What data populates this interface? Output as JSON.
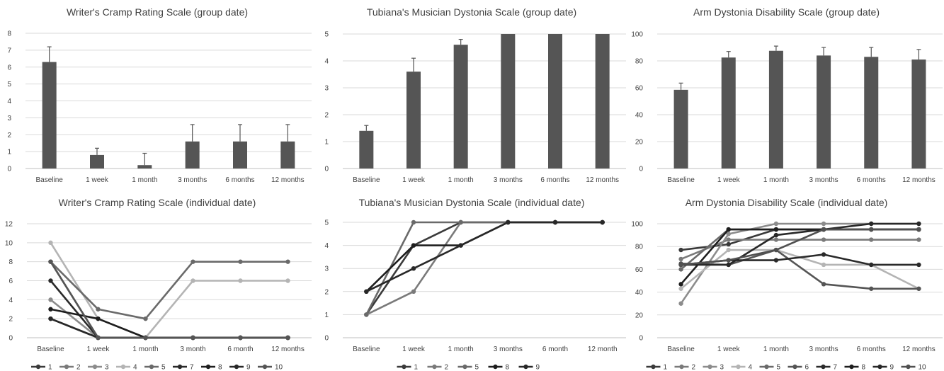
{
  "chart_data": [
    {
      "type": "bar",
      "title": "Writer's Cramp Rating Scale (group date)",
      "categories": [
        "Baseline",
        "1 week",
        "1 month",
        "3 months",
        "6 months",
        "12 months"
      ],
      "values": [
        6.3,
        0.8,
        0.2,
        1.6,
        1.6,
        1.6
      ],
      "error": [
        0.9,
        0.4,
        0.7,
        1.0,
        1.0,
        1.0
      ],
      "ylim": [
        0,
        8
      ],
      "yticks": [
        0,
        1,
        2,
        3,
        4,
        5,
        6,
        7,
        8
      ],
      "grid": true,
      "color": "#555555"
    },
    {
      "type": "bar",
      "title": "Tubiana's Musician Dystonia Scale (group date)",
      "categories": [
        "Baseline",
        "1 week",
        "1 month",
        "3 months",
        "6 months",
        "12 months"
      ],
      "values": [
        1.4,
        3.6,
        4.6,
        5,
        5,
        5
      ],
      "error": [
        0.2,
        0.5,
        0.2,
        0,
        0,
        0
      ],
      "ylim": [
        0,
        5
      ],
      "yticks": [
        0,
        1,
        2,
        3,
        4,
        5
      ],
      "grid": true,
      "color": "#555555"
    },
    {
      "type": "bar",
      "title": "Arm Dystonia Disability Scale (group date)",
      "categories": [
        "Baseline",
        "1 week",
        "1 month",
        "3 months",
        "6 months",
        "12 months"
      ],
      "values": [
        58.5,
        82.5,
        87.5,
        84,
        83,
        81
      ],
      "error": [
        5,
        4.5,
        3.5,
        6,
        7,
        7.5
      ],
      "ylim": [
        0,
        100
      ],
      "yticks": [
        0,
        20,
        40,
        60,
        80,
        100
      ],
      "grid": true,
      "color": "#555555"
    },
    {
      "type": "line",
      "title": "Writer's Cramp Rating Scale  (individual date)",
      "categories": [
        "Baseline",
        "1 week",
        "1 month",
        "3 month",
        "6 month",
        "12 months"
      ],
      "ylim": [
        0,
        12
      ],
      "yticks": [
        0,
        2,
        4,
        6,
        8,
        10,
        12
      ],
      "grid": true,
      "legend": "bottom",
      "series": [
        {
          "name": "1",
          "color": "#3a3a3a",
          "values": [
            2,
            0,
            0,
            0,
            0,
            0
          ]
        },
        {
          "name": "2",
          "color": "#7a7a7a",
          "values": [
            8,
            0,
            0,
            0,
            0,
            0
          ]
        },
        {
          "name": "3",
          "color": "#8c8c8c",
          "values": [
            4,
            0,
            0,
            0,
            0,
            0
          ]
        },
        {
          "name": "4",
          "color": "#b4b4b4",
          "values": [
            10,
            2,
            0,
            6,
            6,
            6
          ]
        },
        {
          "name": "5",
          "color": "#6a6a6a",
          "values": [
            8,
            3,
            2,
            8,
            8,
            8
          ]
        },
        {
          "name": "7",
          "color": "#2a2a2a",
          "values": [
            6,
            0,
            0,
            0,
            0,
            0
          ]
        },
        {
          "name": "8",
          "color": "#1e1e1e",
          "values": [
            3,
            2,
            0,
            0,
            0,
            0
          ]
        },
        {
          "name": "9",
          "color": "#282828",
          "values": [
            2,
            0,
            0,
            0,
            0,
            0
          ]
        },
        {
          "name": "10",
          "color": "#555555",
          "values": [
            8,
            0,
            0,
            0,
            0,
            0
          ]
        }
      ]
    },
    {
      "type": "line",
      "title": "Tubiana's Musician Dystonia Scale (individual date)",
      "categories": [
        "Baseline",
        "1 week",
        "1 month",
        "3 months",
        "6 month",
        "12 month"
      ],
      "ylim": [
        0,
        5
      ],
      "yticks": [
        0,
        1,
        2,
        3,
        4,
        5
      ],
      "grid": true,
      "legend": "bottom",
      "series": [
        {
          "name": "1",
          "color": "#3a3a3a",
          "values": [
            1,
            4,
            5,
            5,
            5,
            5
          ]
        },
        {
          "name": "2",
          "color": "#7a7a7a",
          "values": [
            1,
            2,
            5,
            5,
            5,
            5
          ]
        },
        {
          "name": "5",
          "color": "#6a6a6a",
          "values": [
            1,
            5,
            5,
            5,
            5,
            5
          ]
        },
        {
          "name": "8",
          "color": "#1e1e1e",
          "values": [
            2,
            4,
            4,
            5,
            5,
            5
          ]
        },
        {
          "name": "9",
          "color": "#282828",
          "values": [
            2,
            3,
            4,
            5,
            5,
            5
          ]
        }
      ]
    },
    {
      "type": "line",
      "title": "Arm Dystonia Disability Scale (individual date)",
      "categories": [
        "Baseline",
        "1 week",
        "1 month",
        "3 months",
        "6 months",
        "12 months"
      ],
      "ylim": [
        0,
        100
      ],
      "yticks": [
        0,
        20,
        40,
        60,
        80,
        100
      ],
      "grid": true,
      "legend": "bottom",
      "series": [
        {
          "name": "1",
          "color": "#3a3a3a",
          "values": [
            77,
            82,
            95,
            95,
            95,
            95
          ]
        },
        {
          "name": "2",
          "color": "#7a7a7a",
          "values": [
            69,
            86,
            86,
            86,
            86,
            86
          ]
        },
        {
          "name": "3",
          "color": "#8c8c8c",
          "values": [
            30,
            91,
            100,
            100,
            100,
            100
          ]
        },
        {
          "name": "4",
          "color": "#b4b4b4",
          "values": [
            43,
            77,
            77,
            64,
            64,
            43
          ]
        },
        {
          "name": "5",
          "color": "#6a6a6a",
          "values": [
            60,
            95,
            95,
            95,
            95,
            95
          ]
        },
        {
          "name": "6",
          "color": "#555555",
          "values": [
            65,
            64,
            77,
            47,
            43,
            43
          ]
        },
        {
          "name": "7",
          "color": "#2a2a2a",
          "values": [
            64,
            68,
            68,
            73,
            64,
            64
          ]
        },
        {
          "name": "8",
          "color": "#1e1e1e",
          "values": [
            47,
            95,
            95,
            95,
            95,
            95
          ]
        },
        {
          "name": "9",
          "color": "#282828",
          "values": [
            64,
            64,
            90,
            95,
            100,
            100
          ]
        },
        {
          "name": "10",
          "color": "#505050",
          "values": [
            64,
            68,
            77,
            95,
            95,
            95
          ]
        }
      ]
    }
  ]
}
